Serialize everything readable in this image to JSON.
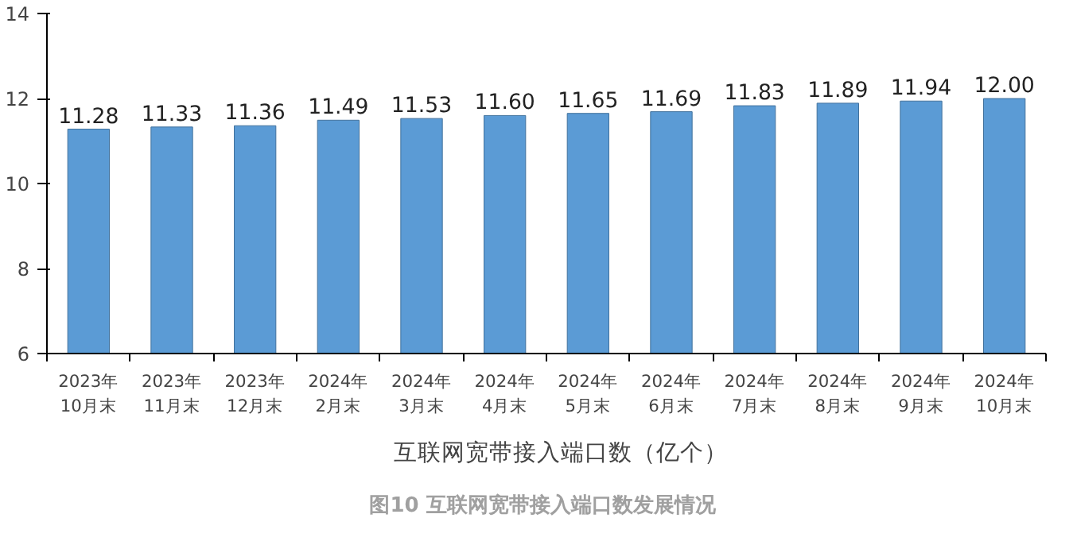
{
  "chart_data": {
    "type": "bar",
    "categories": [
      "2023年\n10月末",
      "2023年\n11月末",
      "2023年\n12月末",
      "2024年\n2月末",
      "2024年\n3月末",
      "2024年\n4月末",
      "2024年\n5月末",
      "2024年\n6月末",
      "2024年\n7月末",
      "2024年\n8月末",
      "2024年\n9月末",
      "2024年\n10月末"
    ],
    "series": [
      {
        "name": "互联网宽带接入端口数（亿个）",
        "color": "#5b9bd5",
        "values": [
          11.28,
          11.33,
          11.36,
          11.49,
          11.53,
          11.6,
          11.65,
          11.69,
          11.83,
          11.89,
          11.94,
          12.0
        ]
      }
    ],
    "value_labels": [
      "11.28",
      "11.33",
      "11.36",
      "11.49",
      "11.53",
      "11.60",
      "11.65",
      "11.69",
      "11.83",
      "11.89",
      "11.94",
      "12.00"
    ],
    "ylim": [
      6,
      14
    ],
    "yticks": [
      6,
      8,
      10,
      12,
      14
    ],
    "grid": false,
    "legend": "bottom",
    "annotations": [
      "图10 互联网宽带接入端口数发展情况"
    ]
  }
}
